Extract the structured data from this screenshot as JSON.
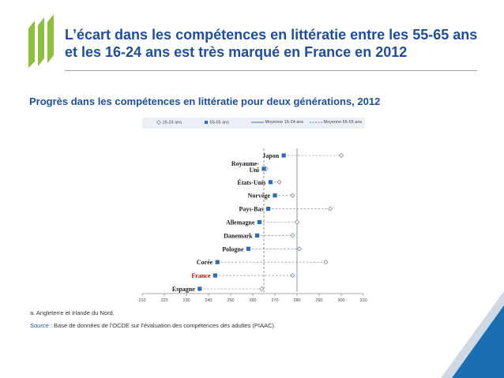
{
  "colors": {
    "brand_blue": "#1f4e9a",
    "logo_green": "#8fbe3c",
    "marker_blue": "#2e6db4",
    "line_grey": "#6b7b8a",
    "corner_blue": "#1a6eb2",
    "corner_light": "#cfd9e4"
  },
  "header": {
    "title_line1": "L’écart dans les compétences en littératie entre les 55-65 ans",
    "title_line2": "et les 16-24 ans est très marqué en France en 2012"
  },
  "subtitle": "Progrès dans les compétences en littératie pour deux générations, 2012",
  "legend": {
    "young": "16-24 ans",
    "old": "55-65 ans",
    "mean_young": "Moyenne 16-24 ans",
    "mean_old": "Moyenne 55-65 ans"
  },
  "chart_data": {
    "type": "dot-range",
    "title": "Progrès dans les compétences en littératie pour deux générations, 2012",
    "xlim": [
      210,
      310
    ],
    "xticks": [
      210,
      220,
      230,
      240,
      250,
      260,
      270,
      280,
      290,
      300,
      310
    ],
    "categories": [
      {
        "label": "Japon",
        "highlight": false
      },
      {
        "label": "Royaume-Uni",
        "label_lines": [
          "Royaume-",
          "Uni"
        ],
        "footnote": "a",
        "highlight": false
      },
      {
        "label": "États-Unis",
        "highlight": false
      },
      {
        "label": "Norvège",
        "highlight": false
      },
      {
        "label": "Pays-Bas",
        "highlight": false
      },
      {
        "label": "Allemagne",
        "highlight": false
      },
      {
        "label": "Danemark",
        "highlight": false
      },
      {
        "label": "Pologne",
        "highlight": false
      },
      {
        "label": "Corée",
        "highlight": false
      },
      {
        "label": "France",
        "highlight": true
      },
      {
        "label": "Espagne",
        "highlight": false
      }
    ],
    "series": [
      {
        "name": "16-24 ans",
        "marker": "open-diamond",
        "values": [
          300,
          266,
          272,
          278,
          295,
          280,
          278,
          281,
          293,
          278,
          264
        ]
      },
      {
        "name": "55-65 ans",
        "marker": "filled-square",
        "values": [
          274,
          265,
          268,
          270,
          267,
          263,
          262,
          258,
          244,
          243,
          236
        ]
      }
    ],
    "reference_lines": [
      {
        "name": "Moyenne 16-24 ans",
        "value": 280,
        "style": "solid"
      },
      {
        "name": "Moyenne 55-65 ans",
        "value": 265,
        "style": "dashed"
      }
    ]
  },
  "footnote": "a. Angleterre et Irlande du Nord.",
  "source": {
    "label": "Source",
    "sep": " : ",
    "text": "Base de données de l’OCDE sur l’évaluation des compétences des adultes (PIAAC)."
  }
}
